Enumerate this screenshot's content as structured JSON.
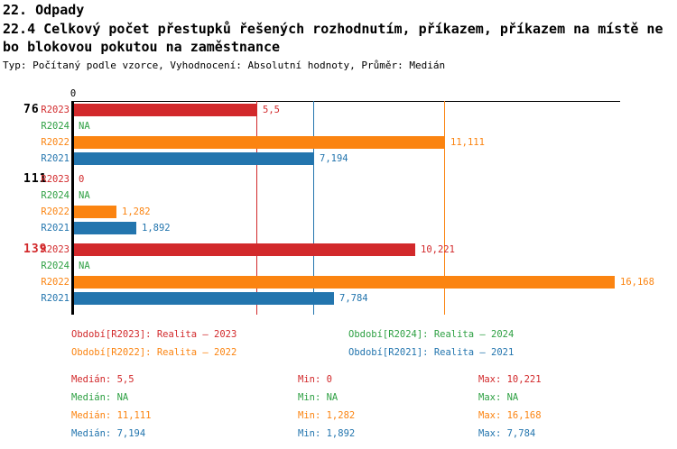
{
  "header": {
    "title": "22. Odpady",
    "subtitle_line1": "22.4 Celkový počet přestupků řešených rozhodnutím, příkazem, příkazem na místě ne",
    "subtitle_line2": "bo blokovou pokutou na zaměstnance",
    "meta": "Typ: Počítaný podle vzorce, Vyhodnocení: Absolutní hodnoty, Průměr: Medián"
  },
  "chart_data": {
    "type": "bar",
    "orientation": "horizontal",
    "title": "22.4 Celkový počet přestupků řešených rozhodnutím, příkazem, příkazem na místě nebo blokovou pokutou na zaměstnance",
    "xlim": [
      0,
      16.3
    ],
    "x_axis": {
      "tick_labels": [
        "0"
      ],
      "origin": 0
    },
    "series_order": [
      "R2023",
      "R2024",
      "R2022",
      "R2021"
    ],
    "series_colors": {
      "R2023": "#d2292b",
      "R2024": "#2ea043",
      "R2022": "#fb8411",
      "R2021": "#2375ae"
    },
    "groups": [
      {
        "label": "76",
        "label_color": "#000000",
        "bars": [
          {
            "series": "R2023",
            "value": 5.5,
            "display": "5,5"
          },
          {
            "series": "R2024",
            "value": null,
            "display": "NA"
          },
          {
            "series": "R2022",
            "value": 11.111,
            "display": "11,111"
          },
          {
            "series": "R2021",
            "value": 7.194,
            "display": "7,194"
          }
        ]
      },
      {
        "label": "111",
        "label_color": "#000000",
        "bars": [
          {
            "series": "R2023",
            "value": 0,
            "display": "0"
          },
          {
            "series": "R2024",
            "value": null,
            "display": "NA"
          },
          {
            "series": "R2022",
            "value": 1.282,
            "display": "1,282"
          },
          {
            "series": "R2021",
            "value": 1.892,
            "display": "1,892"
          }
        ]
      },
      {
        "label": "139",
        "label_color": "#d2292b",
        "bars": [
          {
            "series": "R2023",
            "value": 10.221,
            "display": "10,221"
          },
          {
            "series": "R2024",
            "value": null,
            "display": "NA"
          },
          {
            "series": "R2022",
            "value": 16.168,
            "display": "16,168"
          },
          {
            "series": "R2021",
            "value": 7.784,
            "display": "7,784"
          }
        ]
      }
    ],
    "median_lines": [
      {
        "series": "R2023",
        "value": 5.5
      },
      {
        "series": "R2021",
        "value": 7.194
      },
      {
        "series": "R2022",
        "value": 11.111
      }
    ]
  },
  "legend": {
    "rows": [
      [
        {
          "series": "R2023",
          "text": "Období[R2023]: Realita – 2023"
        },
        {
          "series": "R2024",
          "text": "Období[R2024]: Realita – 2024"
        }
      ],
      [
        {
          "series": "R2022",
          "text": "Období[R2022]: Realita – 2022"
        },
        {
          "series": "R2021",
          "text": "Období[R2021]: Realita – 2021"
        }
      ]
    ]
  },
  "stats": {
    "labels": {
      "median": "Medián",
      "min": "Min",
      "max": "Max"
    },
    "rows": [
      {
        "series": "R2023",
        "median": "5,5",
        "min": "0",
        "max": "10,221"
      },
      {
        "series": "R2024",
        "median": "NA",
        "min": "NA",
        "max": "NA"
      },
      {
        "series": "R2022",
        "median": "11,111",
        "min": "1,282",
        "max": "16,168"
      },
      {
        "series": "R2021",
        "median": "7,194",
        "min": "1,892",
        "max": "7,784"
      }
    ]
  }
}
